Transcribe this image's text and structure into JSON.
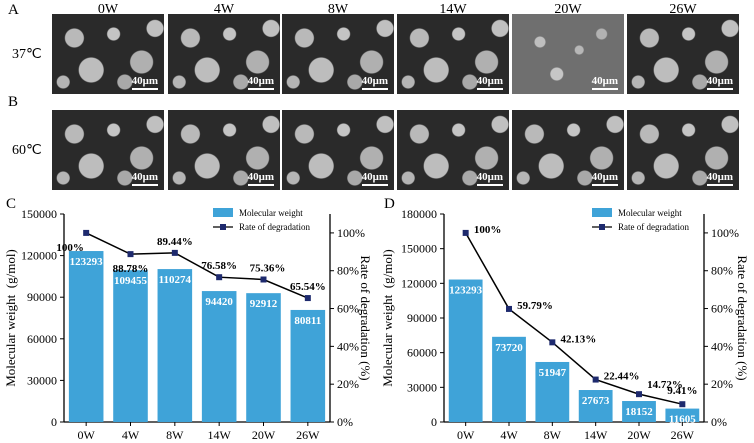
{
  "panels": {
    "A": "A",
    "B": "B",
    "C": "C",
    "D": "D"
  },
  "sem": {
    "weeks": [
      "0W",
      "4W",
      "8W",
      "14W",
      "20W",
      "26W"
    ],
    "rows": [
      {
        "label": "37℃"
      },
      {
        "label": "60℃"
      }
    ],
    "scale_bar": "40μm"
  },
  "chart_data": [
    {
      "type": "bar",
      "panel": "C",
      "categories": [
        "0W",
        "4W",
        "8W",
        "14W",
        "20W",
        "26W"
      ],
      "series": [
        {
          "name": "Molecular weight",
          "type": "bar",
          "color": "#3fa3d8",
          "values": [
            123293,
            109455,
            110274,
            94420,
            92912,
            80811
          ]
        },
        {
          "name": "Rate of degradation",
          "type": "line",
          "color": "#1e2a6e",
          "values": [
            100,
            88.78,
            89.44,
            76.58,
            75.36,
            65.54
          ]
        }
      ],
      "bar_labels": [
        "123293",
        "109455",
        "110274",
        "94420",
        "92912",
        "80811"
      ],
      "line_labels": [
        "100%",
        "88.78%",
        "89.44%",
        "76.58%",
        "75.36%",
        "65.54%"
      ],
      "ylabel_left": "Molecular weight  (g/mol)",
      "ylabel_right": "Rate of degradation (%)",
      "yticks_left": [
        "0",
        "30000",
        "60000",
        "90000",
        "120000",
        "150000"
      ],
      "yticks_right": [
        "0%",
        "20%",
        "40%",
        "60%",
        "80%",
        "100%"
      ],
      "ylim_left": [
        0,
        150000
      ],
      "ylim_right": [
        0,
        110
      ],
      "legend_position": "top-right"
    },
    {
      "type": "bar",
      "panel": "D",
      "categories": [
        "0W",
        "4W",
        "8W",
        "14W",
        "20W",
        "26W"
      ],
      "series": [
        {
          "name": "Molecular weight",
          "type": "bar",
          "color": "#3fa3d8",
          "values": [
            123293,
            73720,
            51947,
            27673,
            18152,
            11605
          ]
        },
        {
          "name": "Rate of degradation",
          "type": "line",
          "color": "#1e2a6e",
          "values": [
            100,
            59.79,
            42.13,
            22.44,
            14.72,
            9.41
          ]
        }
      ],
      "bar_labels": [
        "123293",
        "73720",
        "51947",
        "27673",
        "18152",
        "11605"
      ],
      "line_labels": [
        "100%",
        "59.79%",
        "42.13%",
        "22.44%",
        "14.72%",
        "9.41%"
      ],
      "ylabel_left": "Molecular weight  (g/mol)",
      "ylabel_right": "Rate of degradation (%)",
      "yticks_left": [
        "0",
        "30000",
        "60000",
        "90000",
        "120000",
        "150000",
        "180000"
      ],
      "yticks_right": [
        "0%",
        "20%",
        "40%",
        "60%",
        "80%",
        "100%"
      ],
      "ylim_left": [
        0,
        180000
      ],
      "ylim_right": [
        0,
        110
      ],
      "legend_position": "top-right"
    }
  ]
}
